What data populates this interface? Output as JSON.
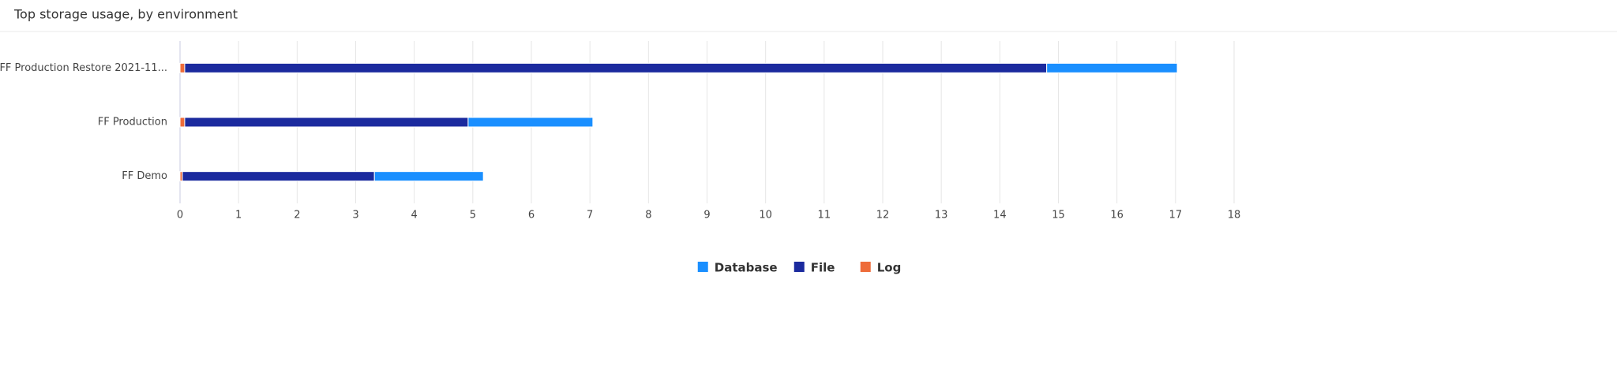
{
  "chart_data": {
    "type": "stacked_barh",
    "title": "Top storage usage, by environment",
    "categories": [
      "FF Production Restore 2021-11...",
      "FF Production",
      "FF Demo"
    ],
    "series": [
      {
        "name": "Log",
        "color": "#ee6c3a",
        "values": [
          0.08,
          0.08,
          0.04
        ]
      },
      {
        "name": "File",
        "color": "#1b2a9e",
        "values": [
          14.72,
          4.84,
          3.28
        ]
      },
      {
        "name": "Database",
        "color": "#1a8fff",
        "values": [
          2.23,
          2.13,
          1.86
        ]
      }
    ],
    "legend_order": [
      "Database",
      "File",
      "Log"
    ],
    "xlim": [
      0,
      18
    ],
    "xticks": [
      0,
      1,
      2,
      3,
      4,
      5,
      6,
      7,
      8,
      9,
      10,
      11,
      12,
      13,
      14,
      15,
      16,
      17,
      18
    ],
    "grid": true,
    "legend": "bottom"
  }
}
